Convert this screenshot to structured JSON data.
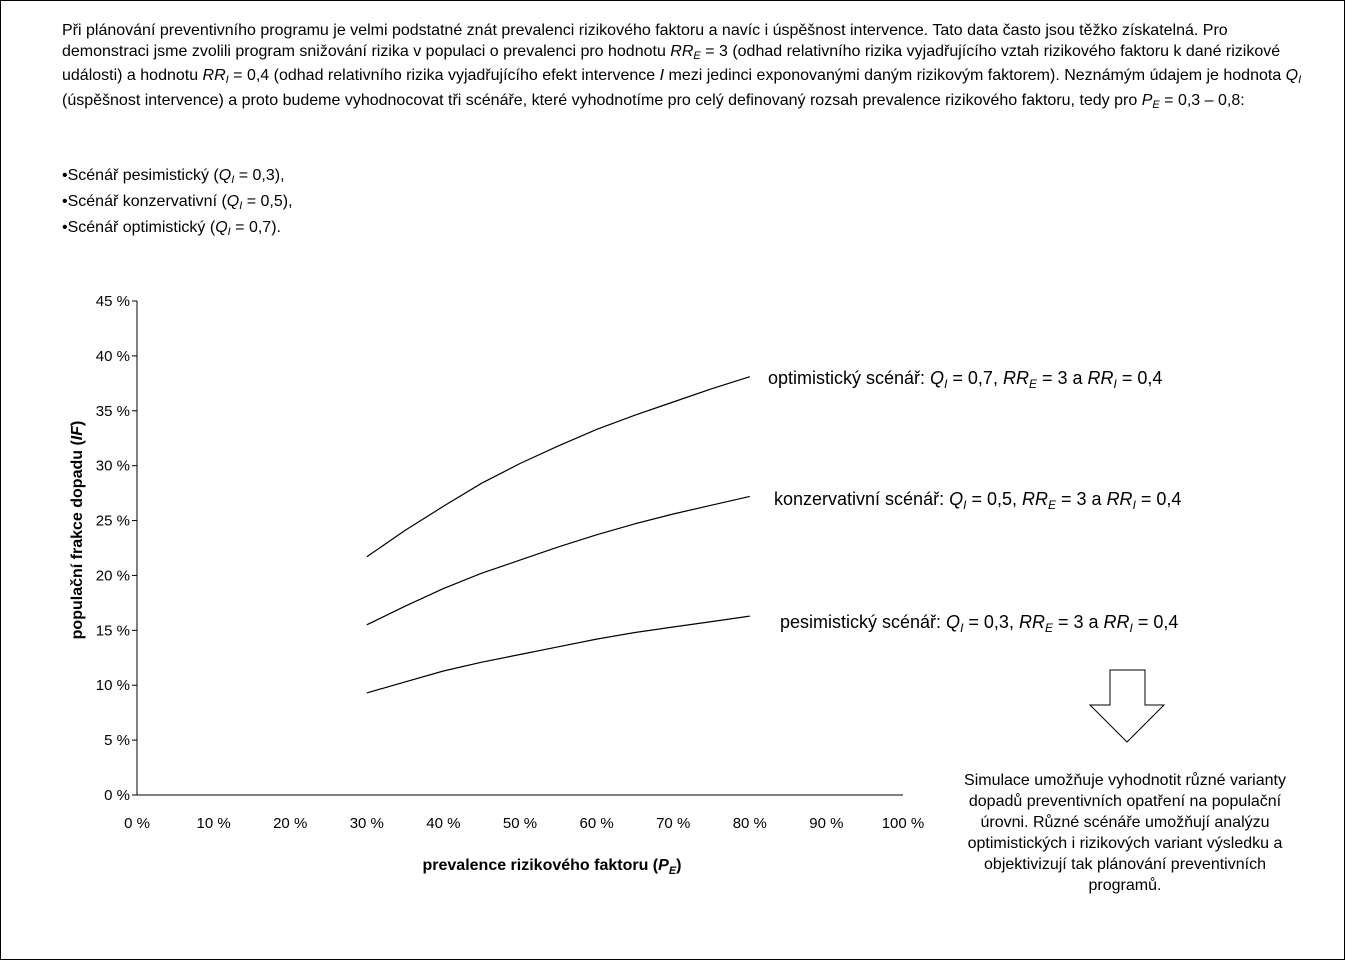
{
  "intro": {
    "s1": "Při plánování preventivního programu je velmi podstatné znát prevalenci rizikového faktoru a navíc i úspěšnost intervence. Tato data často jsou těžko získatelná. Pro demonstraci jsme zvolili program snižování rizika v populaci o prevalenci ",
    "s2": "pro hodnotu ",
    "s3": " = 3 (odhad relativního rizika vyjadřujícího vztah rizikového faktoru k dané rizikové události) a hodnotu ",
    "s4": " = 0,4 (odhad relativního rizika vyjadřujícího efekt intervence ",
    "s5": " mezi jedinci exponovanými daným rizikovým faktorem). Neznámým údajem je hodnota ",
    "s6": " (úspěšnost intervence) a proto budeme vyhodnocovat tři scénáře, které vyhodnotíme pro celý definovaný rozsah prevalence rizikového faktoru, tedy pro ",
    "s7": " = 0,3 – 0,8:",
    "RR": "RR",
    "E": "E",
    "I": "I",
    "Q": "Q",
    "P": "P"
  },
  "bullets": [
    {
      "pre": "•Scénář pesimistický (",
      "post": " = 0,3),"
    },
    {
      "pre": "•Scénář konzervativní (",
      "post": " = 0,5),"
    },
    {
      "pre": "•Scénář optimistický (",
      "post": " = 0,7)."
    }
  ],
  "chart_data": {
    "type": "line",
    "ylabel": "populační frakce dopadu (IF)",
    "xlabel": "prevalence rizikového faktoru (PE)",
    "xlim": [
      0,
      100
    ],
    "ylim": [
      0,
      45
    ],
    "x_ticks": [
      "0 %",
      "10 %",
      "20 %",
      "30 %",
      "40 %",
      "50 %",
      "60 %",
      "70 %",
      "80 %",
      "90 %",
      "100 %"
    ],
    "y_ticks": [
      "0 %",
      "5 %",
      "10 %",
      "15 %",
      "20 %",
      "25 %",
      "30 %",
      "35 %",
      "40 %",
      "45 %"
    ],
    "x": [
      30,
      35,
      40,
      45,
      50,
      55,
      60,
      65,
      70,
      75,
      80
    ],
    "series": [
      {
        "name": "optimistický scénář: QI = 0,7, RRE = 3 a RRI = 0,4",
        "values": [
          21.7,
          24.1,
          26.3,
          28.4,
          30.2,
          31.8,
          33.3,
          34.6,
          35.8,
          37.0,
          38.1
        ]
      },
      {
        "name": "konzervativní scénář: QI = 0,5, RRE = 3 a RRI = 0,4",
        "values": [
          15.5,
          17.2,
          18.8,
          20.2,
          21.4,
          22.6,
          23.7,
          24.7,
          25.6,
          26.4,
          27.2
        ]
      },
      {
        "name": "pesimistický scénář: QI = 0,3, RRE = 3 a RRI = 0,4",
        "values": [
          9.3,
          10.3,
          11.3,
          12.1,
          12.8,
          13.5,
          14.2,
          14.8,
          15.3,
          15.8,
          16.3
        ]
      }
    ]
  },
  "labels": {
    "opt_pre": "optimistický scénář: ",
    "opt_q": "0,7",
    "kon_pre": "konzervativní scénář: ",
    "kon_q": "0,5",
    "pes_pre": "pesimistický scénář: ",
    "pes_q": "0,3",
    "eq": " = ",
    "mid": ", ",
    "rre_val": " = 3 a ",
    "rri_val": " = 0,4",
    "Q": "Q",
    "I": "I",
    "RR": "RR",
    "E": "E",
    "ylabel_main": "populační frakce dopadu (",
    "ylabel_it": "IF",
    "ylabel_end": ")",
    "xlabel_main": "prevalence rizikového faktoru (",
    "xlabel_it": "P",
    "xlabel_sub": "E",
    "xlabel_end": ")"
  },
  "summary": "Simulace umožňuje vyhodnotit různé varianty dopadů preventivních opatření na populační úrovni. Různé scénáře umožňují analýzu optimistických i rizikových variant výsledku a objektivizují tak plánování preventivních programů."
}
